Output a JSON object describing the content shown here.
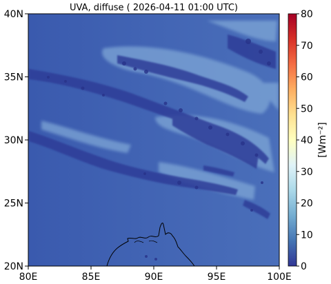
{
  "title": "UVA, diffuse ( 2026-04-11 01:00 UTC)",
  "map": {
    "lon_range": [
      80,
      100
    ],
    "lat_range": [
      20,
      40
    ],
    "x_ticks": [
      "80E",
      "85E",
      "90E",
      "95E",
      "100E"
    ],
    "y_ticks": [
      "20N",
      "25N",
      "30N",
      "35N",
      "40N"
    ]
  },
  "colorbar": {
    "label": "[Wm⁻²]",
    "range": [
      0,
      80
    ],
    "ticks": [
      "0",
      "10",
      "20",
      "30",
      "40",
      "50",
      "60",
      "70",
      "80"
    ],
    "colormap": "RdYlBu_r"
  },
  "colors": {
    "background_field": "#3f63b4",
    "dark_cloud": "#333f9a",
    "light_cloud": "#8fb4da",
    "coast": "#000000"
  }
}
